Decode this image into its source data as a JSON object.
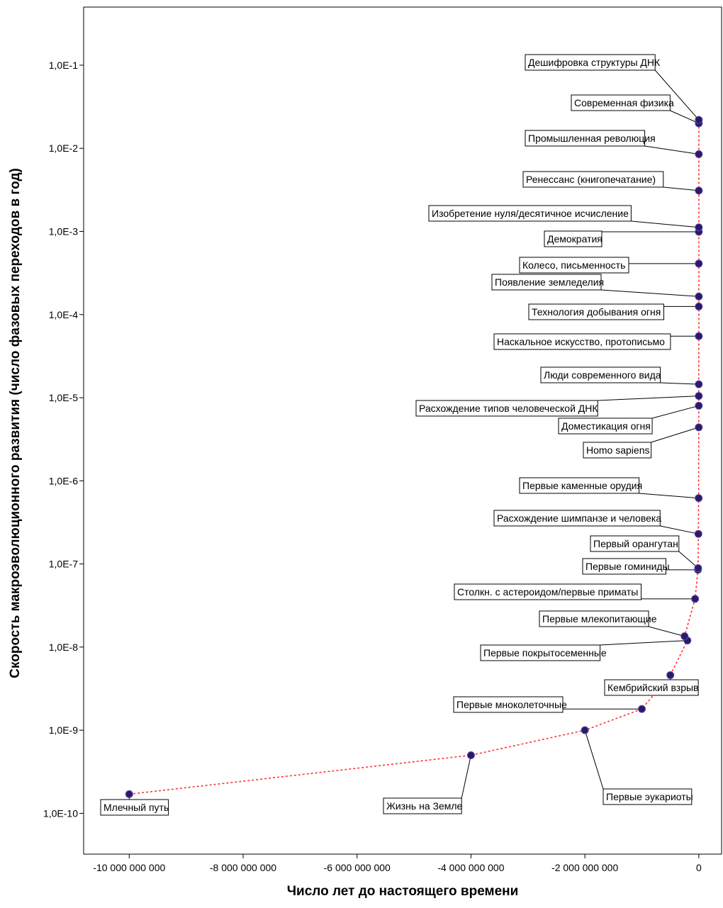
{
  "chart_data": {
    "type": "scatter",
    "xlabel": "Число лет до настоящего времени",
    "ylabel": "Скорость макроэволюционного развития (число фазовых переходов в год)",
    "y_scale": "log",
    "xlim": [
      -10800000000,
      400000000
    ],
    "ylim": [
      3.23e-11,
      0.5
    ],
    "x_ticks": [
      -10000000000,
      -8000000000,
      -6000000000,
      -4000000000,
      -2000000000,
      0
    ],
    "x_tick_labels": [
      "-10 000 000 000",
      "-8 000 000 000",
      "-6 000 000 000",
      "-4 000 000 000",
      "-2 000 000 000",
      "0"
    ],
    "y_ticks": [
      1e-10,
      1e-09,
      1e-08,
      1e-07,
      1e-06,
      1e-05,
      0.0001,
      0.001,
      0.01,
      0.1
    ],
    "y_tick_labels": [
      "1,0E-10",
      "1,0E-9",
      "1,0E-8",
      "1,0E-7",
      "1,0E-6",
      "1,0E-5",
      "1,0E-4",
      "1,0E-3",
      "1,0E-2",
      "1,0E-1"
    ],
    "grid": false,
    "marker_color": "#2b1a6b",
    "line_color": "#ff3333",
    "points": [
      {
        "label": "Млечный путь",
        "x": -10000000000,
        "y": 1.7e-10
      },
      {
        "label": "Жизнь на Земле",
        "x": -4000000000,
        "y": 5e-10
      },
      {
        "label": "Первые эукариоты",
        "x": -2000000000,
        "y": 1e-09
      },
      {
        "label": "Первые мноколеточные",
        "x": -1000000000,
        "y": 1.8e-09
      },
      {
        "label": "Кембрийский взрыв",
        "x": -500000000,
        "y": 4.6e-09
      },
      {
        "label": "Первые покрытосеменные",
        "x": -200000000,
        "y": 1.2e-08
      },
      {
        "label": "Первые млекопитающие",
        "x": -250000000,
        "y": 1.35e-08
      },
      {
        "label": "Столкн. с астероидом/первые приматы",
        "x": -65000000,
        "y": 3.8e-08
      },
      {
        "label": "Первые гоминиды",
        "x": -15000000,
        "y": 8.5e-08
      },
      {
        "label": "Первый орангутан",
        "x": -12000000,
        "y": 8.9e-08
      },
      {
        "label": "Расхождение шимпанзе и человека",
        "x": -7000000,
        "y": 2.3e-07
      },
      {
        "label": "Первые каменные орудия",
        "x": -2600000,
        "y": 6.2e-07
      },
      {
        "label": "Homo sapiens",
        "x": -500000,
        "y": 4.4e-06
      },
      {
        "label": "Доместикация огня",
        "x": -400000,
        "y": 8e-06
      },
      {
        "label": "Расхождение типов человеческой ДНК",
        "x": -300000,
        "y": 1.05e-05
      },
      {
        "label": "Люди современного вида",
        "x": -200000,
        "y": 1.45e-05
      },
      {
        "label": "Наскальное искусство, протописьмо",
        "x": -35000,
        "y": 5.5e-05
      },
      {
        "label": "Технология добывания огня",
        "x": -12000,
        "y": 0.000125
      },
      {
        "label": "Появление земледелия",
        "x": -10000,
        "y": 0.000165
      },
      {
        "label": "Колесо, письменность",
        "x": -5000,
        "y": 0.00041
      },
      {
        "label": "Демократия",
        "x": -2500,
        "y": 0.00099
      },
      {
        "label": "Изобретение нуля/десятичное исчисление",
        "x": -2000,
        "y": 0.00112
      },
      {
        "label": "Ренессанс (книгопечатание)",
        "x": -550,
        "y": 0.0031
      },
      {
        "label": "Промышленная революция",
        "x": -225,
        "y": 0.0085
      },
      {
        "label": "Современная физика",
        "x": -100,
        "y": 0.02
      },
      {
        "label": "Дешифровка структуры ДНК",
        "x": -50,
        "y": 0.022
      }
    ]
  }
}
